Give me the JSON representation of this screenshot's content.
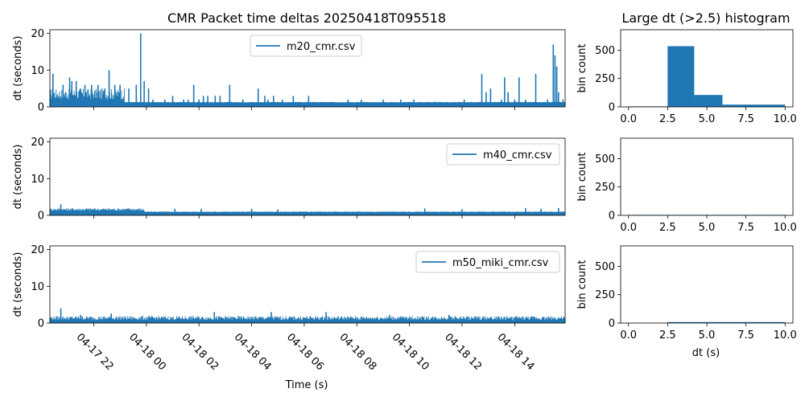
{
  "figure": {
    "title": "CMR Packet time deltas 20250418T095518",
    "hist_title": "Large dt (>2.5) histogram",
    "xlabel": "Time (s)",
    "ylabel": "dt (seconds)",
    "hist_ylabel": "bin count",
    "hist_xlabel": "dt (s)"
  },
  "colors": {
    "series": "#1f77b4",
    "axis": "#000000",
    "background": "#ffffff"
  },
  "chart_data": [
    {
      "type": "line",
      "legend": "m20_cmr.csv",
      "legend_position": "top-center",
      "xlim": [
        "2025-04-17T20:20",
        "2025-04-18T15:55"
      ],
      "ylim": [
        0,
        21
      ],
      "yticks": [
        0,
        10,
        20
      ],
      "base_level": 1.2,
      "early_band": {
        "x_start": "2025-04-17T20:20",
        "x_end": "2025-04-17T23:10",
        "min": 2,
        "max": 5
      },
      "spikes": [
        {
          "x": "2025-04-17T20:27",
          "y": 9
        },
        {
          "x": "2025-04-17T20:50",
          "y": 6
        },
        {
          "x": "2025-04-17T21:05",
          "y": 8
        },
        {
          "x": "2025-04-17T21:20",
          "y": 7
        },
        {
          "x": "2025-04-17T21:40",
          "y": 6
        },
        {
          "x": "2025-04-17T21:55",
          "y": 6
        },
        {
          "x": "2025-04-17T22:10",
          "y": 6
        },
        {
          "x": "2025-04-17T21:10",
          "y": 7
        },
        {
          "x": "2025-04-17T21:30",
          "y": 5
        },
        {
          "x": "2025-04-17T22:25",
          "y": 5
        },
        {
          "x": "2025-04-17T22:35",
          "y": 10
        },
        {
          "x": "2025-04-17T22:48",
          "y": 6
        },
        {
          "x": "2025-04-17T23:00",
          "y": 6
        },
        {
          "x": "2025-04-17T23:20",
          "y": 5
        },
        {
          "x": "2025-04-17T23:37",
          "y": 6
        },
        {
          "x": "2025-04-17T23:47",
          "y": 20
        },
        {
          "x": "2025-04-17T23:55",
          "y": 7
        },
        {
          "x": "2025-04-18T00:05",
          "y": 5
        },
        {
          "x": "2025-04-18T00:15",
          "y": 2
        },
        {
          "x": "2025-04-18T00:42",
          "y": 2
        },
        {
          "x": "2025-04-18T01:00",
          "y": 3
        },
        {
          "x": "2025-04-18T01:25",
          "y": 2
        },
        {
          "x": "2025-04-18T01:35",
          "y": 2
        },
        {
          "x": "2025-04-18T01:48",
          "y": 6
        },
        {
          "x": "2025-04-18T02:00",
          "y": 2
        },
        {
          "x": "2025-04-18T02:10",
          "y": 3
        },
        {
          "x": "2025-04-18T02:20",
          "y": 3
        },
        {
          "x": "2025-04-18T02:37",
          "y": 3
        },
        {
          "x": "2025-04-18T02:48",
          "y": 3
        },
        {
          "x": "2025-04-18T03:10",
          "y": 6
        },
        {
          "x": "2025-04-18T03:40",
          "y": 2
        },
        {
          "x": "2025-04-18T04:15",
          "y": 5
        },
        {
          "x": "2025-04-18T04:30",
          "y": 3
        },
        {
          "x": "2025-04-18T04:37",
          "y": 2
        },
        {
          "x": "2025-04-18T04:50",
          "y": 3
        },
        {
          "x": "2025-04-18T05:10",
          "y": 2
        },
        {
          "x": "2025-04-18T05:35",
          "y": 3
        },
        {
          "x": "2025-04-18T06:10",
          "y": 3
        },
        {
          "x": "2025-04-18T07:40",
          "y": 2
        },
        {
          "x": "2025-04-18T08:10",
          "y": 2
        },
        {
          "x": "2025-04-18T09:00",
          "y": 2
        },
        {
          "x": "2025-04-18T09:40",
          "y": 2
        },
        {
          "x": "2025-04-18T10:10",
          "y": 2
        },
        {
          "x": "2025-04-18T12:05",
          "y": 2
        },
        {
          "x": "2025-04-18T12:45",
          "y": 9
        },
        {
          "x": "2025-04-18T12:55",
          "y": 4
        },
        {
          "x": "2025-04-18T13:05",
          "y": 5
        },
        {
          "x": "2025-04-18T13:30",
          "y": 2
        },
        {
          "x": "2025-04-18T13:37",
          "y": 8
        },
        {
          "x": "2025-04-18T13:45",
          "y": 4
        },
        {
          "x": "2025-04-18T14:00",
          "y": 2
        },
        {
          "x": "2025-04-18T14:10",
          "y": 8
        },
        {
          "x": "2025-04-18T14:25",
          "y": 2
        },
        {
          "x": "2025-04-18T14:48",
          "y": 9
        },
        {
          "x": "2025-04-18T15:15",
          "y": 2
        },
        {
          "x": "2025-04-18T15:28",
          "y": 17
        },
        {
          "x": "2025-04-18T15:32",
          "y": 14
        },
        {
          "x": "2025-04-18T15:36",
          "y": 11
        },
        {
          "x": "2025-04-18T15:40",
          "y": 4
        },
        {
          "x": "2025-04-18T15:50",
          "y": 2
        }
      ]
    },
    {
      "type": "line",
      "legend": "m40_cmr.csv",
      "legend_position": "top-right",
      "xlim": [
        "2025-04-17T20:20",
        "2025-04-18T15:55"
      ],
      "ylim": [
        0,
        21
      ],
      "yticks": [
        0,
        10,
        20
      ],
      "base_level": 0.9,
      "early_band": {
        "x_start": "2025-04-17T20:20",
        "x_end": "2025-04-17T23:55",
        "min": 1.2,
        "max": 2
      },
      "spikes": [
        {
          "x": "2025-04-17T20:45",
          "y": 3
        },
        {
          "x": "2025-04-18T01:05",
          "y": 1.8
        },
        {
          "x": "2025-04-18T02:05",
          "y": 1.8
        },
        {
          "x": "2025-04-18T04:00",
          "y": 1.8
        },
        {
          "x": "2025-04-18T05:00",
          "y": 1.6
        },
        {
          "x": "2025-04-18T10:35",
          "y": 1.9
        },
        {
          "x": "2025-04-18T12:00",
          "y": 1.7
        },
        {
          "x": "2025-04-18T14:25",
          "y": 2
        },
        {
          "x": "2025-04-18T15:00",
          "y": 1.8
        },
        {
          "x": "2025-04-18T15:40",
          "y": 2
        }
      ]
    },
    {
      "type": "line",
      "legend": "m50_miki_cmr.csv",
      "legend_position": "top-right",
      "xlim": [
        "2025-04-17T20:20",
        "2025-04-18T15:55"
      ],
      "ylim": [
        0,
        21
      ],
      "yticks": [
        0,
        10,
        20
      ],
      "base_level": 0.8,
      "early_band": {
        "x_start": "2025-04-17T20:20",
        "x_end": "2025-04-18T15:55",
        "min": 0.8,
        "max": 1.9
      },
      "spikes": [
        {
          "x": "2025-04-17T20:45",
          "y": 4
        },
        {
          "x": "2025-04-17T21:30",
          "y": 2.2
        },
        {
          "x": "2025-04-17T22:40",
          "y": 2.6
        },
        {
          "x": "2025-04-18T02:35",
          "y": 3
        },
        {
          "x": "2025-04-18T04:45",
          "y": 3
        },
        {
          "x": "2025-04-18T06:50",
          "y": 3
        },
        {
          "x": "2025-04-18T09:15",
          "y": 2.2
        },
        {
          "x": "2025-04-18T11:30",
          "y": 2.2
        }
      ]
    },
    {
      "type": "bar",
      "histogram": true,
      "ylabel": "bin count",
      "xlim": [
        -0.5,
        10.5
      ],
      "ylim": [
        0,
        680
      ],
      "xticks": [
        0.0,
        2.5,
        5.0,
        7.5,
        10.0
      ],
      "yticks": [
        0,
        250,
        500
      ],
      "bins": [
        {
          "x0": 0.0,
          "x1": 2.5,
          "count": 0
        },
        {
          "x0": 2.5,
          "x1": 4.2,
          "count": 535
        },
        {
          "x0": 4.2,
          "x1": 6.0,
          "count": 105
        },
        {
          "x0": 6.0,
          "x1": 10.0,
          "count": 20
        }
      ]
    },
    {
      "type": "bar",
      "histogram": true,
      "ylabel": "bin count",
      "xlim": [
        -0.5,
        10.5
      ],
      "ylim": [
        0,
        680
      ],
      "xticks": [
        0.0,
        2.5,
        5.0,
        7.5,
        10.0
      ],
      "yticks": [
        0,
        250,
        500
      ],
      "bins": [
        {
          "x0": 0.0,
          "x1": 10.0,
          "count": 0
        }
      ]
    },
    {
      "type": "bar",
      "histogram": true,
      "ylabel": "bin count",
      "xlabel": "dt (s)",
      "xlim": [
        -0.5,
        10.5
      ],
      "ylim": [
        0,
        680
      ],
      "xticks": [
        0.0,
        2.5,
        5.0,
        7.5,
        10.0
      ],
      "yticks": [
        0,
        250,
        500
      ],
      "bins": [
        {
          "x0": 2.5,
          "x1": 4.0,
          "count": 5
        },
        {
          "x0": 4.0,
          "x1": 10.0,
          "count": 1
        }
      ]
    }
  ],
  "time_ticks": [
    {
      "x": "2025-04-17T22:00",
      "label": "04-17 22"
    },
    {
      "x": "2025-04-18T00:00",
      "label": "04-18 00"
    },
    {
      "x": "2025-04-18T02:00",
      "label": "04-18 02"
    },
    {
      "x": "2025-04-18T04:00",
      "label": "04-18 04"
    },
    {
      "x": "2025-04-18T06:00",
      "label": "04-18 06"
    },
    {
      "x": "2025-04-18T08:00",
      "label": "04-18 08"
    },
    {
      "x": "2025-04-18T10:00",
      "label": "04-18 10"
    },
    {
      "x": "2025-04-18T12:00",
      "label": "04-18 12"
    },
    {
      "x": "2025-04-18T14:00",
      "label": "04-18 14"
    }
  ]
}
